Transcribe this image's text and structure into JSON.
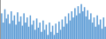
{
  "chart_data": {
    "type": "bar",
    "values": [
      56.5,
      52.0,
      58.5,
      54.0,
      56.0,
      51.5,
      57.5,
      53.0,
      55.5,
      51.0,
      57.0,
      52.5,
      55.0,
      50.5,
      56.5,
      52.0,
      54.5,
      50.0,
      55.5,
      51.0,
      53.0,
      48.5,
      54.0,
      49.5,
      52.0,
      47.5,
      53.0,
      48.5,
      51.0,
      46.0,
      52.0,
      47.5,
      50.5,
      46.0,
      51.5,
      47.0,
      52.5,
      48.5,
      53.5,
      50.0,
      55.0,
      51.5,
      56.5,
      53.0,
      57.5,
      54.5,
      59.0,
      55.5,
      60.0,
      56.5,
      61.0,
      57.5,
      59.5,
      55.0,
      58.0,
      53.5,
      56.5,
      52.0,
      54.5,
      50.0,
      55.5,
      51.0,
      53.5,
      49.0,
      54.5,
      50.0
    ],
    "color": "#5b9bd5",
    "ylim": [
      44.0,
      63.0
    ],
    "tick_labels": false,
    "grid": false
  }
}
